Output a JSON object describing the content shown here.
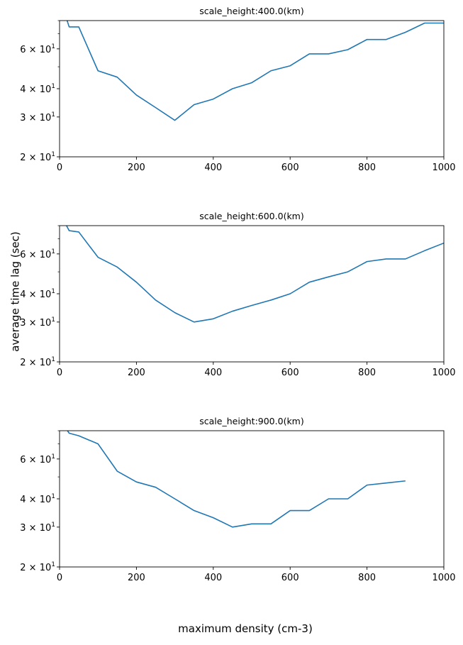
{
  "figure": {
    "ylabel": "average time lag (sec)",
    "xlabel": "maximum density (cm-3)"
  },
  "chart_data": [
    {
      "type": "line",
      "title": "scale_height:400.0(km)",
      "xlim": [
        0,
        1000
      ],
      "ylim": [
        20,
        80
      ],
      "yscale": "log",
      "grid": false,
      "color": "#1f77b4",
      "x_ticks": [
        "0",
        "200",
        "400",
        "600",
        "800",
        "1000"
      ],
      "y_ticks": [
        {
          "base": "2 × 10",
          "exp": "1"
        },
        {
          "base": "3 × 10",
          "exp": "1"
        },
        {
          "base": "4 × 10",
          "exp": "1"
        },
        {
          "base": "6 × 10",
          "exp": "1"
        }
      ],
      "x": [
        10,
        25,
        50,
        100,
        150,
        200,
        250,
        300,
        350,
        400,
        450,
        500,
        550,
        600,
        650,
        700,
        750,
        800,
        850,
        900,
        950,
        1000
      ],
      "y": [
        90,
        75,
        75,
        48,
        45,
        37.5,
        33,
        29,
        34,
        36,
        40,
        42.5,
        48,
        50.5,
        57,
        57,
        59.5,
        66,
        66,
        71,
        78,
        78
      ]
    },
    {
      "type": "line",
      "title": "scale_height:600.0(km)",
      "xlim": [
        0,
        1000
      ],
      "ylim": [
        20,
        80
      ],
      "yscale": "log",
      "grid": false,
      "color": "#1f77b4",
      "x_ticks": [
        "0",
        "200",
        "400",
        "600",
        "800",
        "1000"
      ],
      "y_ticks": [
        {
          "base": "2 × 10",
          "exp": "1"
        },
        {
          "base": "3 × 10",
          "exp": "1"
        },
        {
          "base": "4 × 10",
          "exp": "1"
        },
        {
          "base": "6 × 10",
          "exp": "1"
        }
      ],
      "x": [
        10,
        25,
        50,
        100,
        150,
        200,
        250,
        300,
        350,
        400,
        450,
        500,
        550,
        600,
        650,
        700,
        750,
        800,
        850,
        900,
        950,
        1000
      ],
      "y": [
        85,
        76,
        75,
        58,
        52.5,
        45,
        37.5,
        33,
        30,
        31,
        33.5,
        35.5,
        37.5,
        40,
        45,
        47.5,
        50,
        55.5,
        57,
        57,
        62,
        67
      ]
    },
    {
      "type": "line",
      "title": "scale_height:900.0(km)",
      "xlim": [
        0,
        1000
      ],
      "ylim": [
        20,
        80
      ],
      "yscale": "log",
      "grid": false,
      "color": "#1f77b4",
      "x_ticks": [
        "0",
        "200",
        "400",
        "600",
        "800",
        "1000"
      ],
      "y_ticks": [
        {
          "base": "2 × 10",
          "exp": "1"
        },
        {
          "base": "3 × 10",
          "exp": "1"
        },
        {
          "base": "4 × 10",
          "exp": "1"
        },
        {
          "base": "6 × 10",
          "exp": "1"
        }
      ],
      "x": [
        10,
        25,
        50,
        100,
        150,
        200,
        250,
        300,
        350,
        400,
        450,
        500,
        550,
        600,
        650,
        700,
        750,
        800,
        850,
        900
      ],
      "y": [
        85,
        78,
        76,
        70,
        53,
        47.5,
        45,
        40,
        35.5,
        33,
        30,
        31,
        31,
        35.5,
        35.5,
        40,
        40,
        46,
        47,
        48
      ]
    }
  ]
}
